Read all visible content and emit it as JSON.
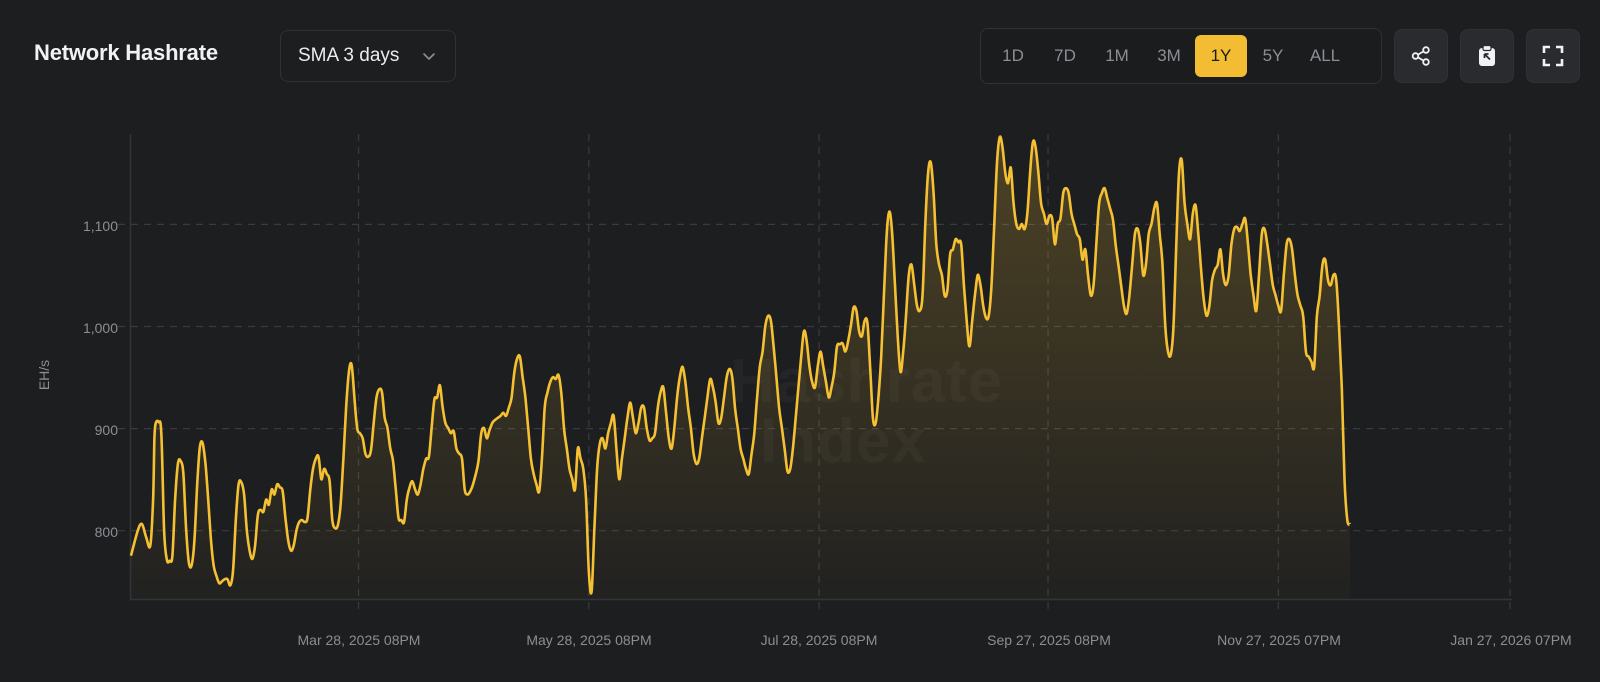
{
  "header": {
    "title": "Network Hashrate",
    "average_select": {
      "value": "SMA 3 days",
      "icon": "chevron-down-icon"
    }
  },
  "range_buttons": [
    {
      "label": "1D",
      "active": false
    },
    {
      "label": "7D",
      "active": false
    },
    {
      "label": "1M",
      "active": false
    },
    {
      "label": "3M",
      "active": false
    },
    {
      "label": "1Y",
      "active": true
    },
    {
      "label": "5Y",
      "active": false
    },
    {
      "label": "ALL",
      "active": false
    }
  ],
  "toolbar": {
    "share_icon": "share-icon",
    "clipboard_icon": "clipboard-icon",
    "fullscreen_icon": "fullscreen-icon"
  },
  "watermark": {
    "line1": "Hashrate",
    "line2": "Index"
  },
  "colors": {
    "background": "#1d1e20",
    "accent": "#f2bd33",
    "line": "#f5c133",
    "grid": "#3a3b40",
    "tick_text": "#8d8e94"
  },
  "chart_data": {
    "type": "area",
    "title": "Network Hashrate",
    "xlabel": "",
    "ylabel": "EH/s",
    "ylim": [
      734,
      1190
    ],
    "yticks": [
      "800",
      "900",
      "1,000",
      "1,100"
    ],
    "ytick_values": [
      800,
      900,
      1000,
      1100
    ],
    "xticks": [
      "Mar 28, 2025 08PM",
      "May 28, 2025 08PM",
      "Jul 28, 2025 08PM",
      "Sep 27, 2025 08PM",
      "Nov 27, 2025 07PM",
      "Jan 27, 2026 07PM"
    ],
    "xtick_positions": [
      0.165,
      0.332,
      0.499,
      0.665,
      0.832,
      1.0
    ],
    "grid": true,
    "legend": null,
    "series": [
      {
        "name": "Network Hashrate (SMA 3 days)",
        "x_frac": [
          0,
          0.005,
          0.008,
          0.011,
          0.014,
          0.016,
          0.017,
          0.018,
          0.02,
          0.022,
          0.024,
          0.026,
          0.028,
          0.03,
          0.032,
          0.034,
          0.036,
          0.038,
          0.04,
          0.042,
          0.044,
          0.046,
          0.048,
          0.05,
          0.052,
          0.054,
          0.056,
          0.058,
          0.06,
          0.062,
          0.064,
          0.066,
          0.068,
          0.07,
          0.072,
          0.074,
          0.076,
          0.078,
          0.08,
          0.082,
          0.084,
          0.086,
          0.088,
          0.09,
          0.092,
          0.094,
          0.096,
          0.098,
          0.1,
          0.102,
          0.104,
          0.106,
          0.108,
          0.11,
          0.112,
          0.114,
          0.116,
          0.118,
          0.12,
          0.122,
          0.124,
          0.126,
          0.128,
          0.13,
          0.132,
          0.134,
          0.136,
          0.138,
          0.14,
          0.142,
          0.144,
          0.146,
          0.148,
          0.15,
          0.152,
          0.154,
          0.156,
          0.158,
          0.16,
          0.162,
          0.164,
          0.166,
          0.168,
          0.17,
          0.172,
          0.174,
          0.176,
          0.178,
          0.18,
          0.182,
          0.184,
          0.186,
          0.188,
          0.19,
          0.192,
          0.194,
          0.196,
          0.198,
          0.2,
          0.202,
          0.204,
          0.206,
          0.208,
          0.21,
          0.212,
          0.214,
          0.216,
          0.218,
          0.22,
          0.222,
          0.224,
          0.226,
          0.228,
          0.23,
          0.232,
          0.234,
          0.236,
          0.238,
          0.24,
          0.242,
          0.244,
          0.246,
          0.248,
          0.25,
          0.252,
          0.254,
          0.256,
          0.258,
          0.26,
          0.262,
          0.264,
          0.266,
          0.268,
          0.27,
          0.272,
          0.274,
          0.276,
          0.278,
          0.28,
          0.282,
          0.284,
          0.286,
          0.288,
          0.29,
          0.292,
          0.294,
          0.296,
          0.298,
          0.3,
          0.302,
          0.304,
          0.306,
          0.308,
          0.31,
          0.312,
          0.314,
          0.316,
          0.318,
          0.32,
          0.322,
          0.324,
          0.326,
          0.328,
          0.33,
          0.332,
          0.334,
          0.336,
          0.338,
          0.34,
          0.342,
          0.344,
          0.346,
          0.348,
          0.35,
          0.352,
          0.354,
          0.356,
          0.358,
          0.36,
          0.362,
          0.364,
          0.366,
          0.368,
          0.37,
          0.372,
          0.374,
          0.376,
          0.378,
          0.38,
          0.382,
          0.384,
          0.386,
          0.388,
          0.39,
          0.392,
          0.394,
          0.396,
          0.398,
          0.4,
          0.402,
          0.404,
          0.406,
          0.408,
          0.41,
          0.412,
          0.414,
          0.416,
          0.418,
          0.42,
          0.422,
          0.424,
          0.426,
          0.428,
          0.43,
          0.432,
          0.434,
          0.436,
          0.438,
          0.44,
          0.442,
          0.444,
          0.446,
          0.448,
          0.45,
          0.452,
          0.454,
          0.456,
          0.458,
          0.46,
          0.462,
          0.464,
          0.466,
          0.468,
          0.47,
          0.472,
          0.474,
          0.476,
          0.478,
          0.48,
          0.482,
          0.484,
          0.486,
          0.488,
          0.49,
          0.492,
          0.494,
          0.496,
          0.498,
          0.5,
          0.502,
          0.504,
          0.506,
          0.508,
          0.51,
          0.512,
          0.514,
          0.516,
          0.518,
          0.52,
          0.522,
          0.524,
          0.526,
          0.528,
          0.53,
          0.532,
          0.534,
          0.536,
          0.538,
          0.54,
          0.542,
          0.544,
          0.546,
          0.548,
          0.55,
          0.552,
          0.554,
          0.556,
          0.558,
          0.56,
          0.562,
          0.564,
          0.566,
          0.568,
          0.57,
          0.572,
          0.574,
          0.576,
          0.578,
          0.58,
          0.582,
          0.584,
          0.586,
          0.588,
          0.59,
          0.592,
          0.594,
          0.596,
          0.598,
          0.6,
          0.602,
          0.604,
          0.606,
          0.608,
          0.61,
          0.612,
          0.614,
          0.616,
          0.618,
          0.62,
          0.622,
          0.624,
          0.626,
          0.628,
          0.63,
          0.632,
          0.634,
          0.636,
          0.638,
          0.64,
          0.642,
          0.644,
          0.646,
          0.648,
          0.65,
          0.652,
          0.654,
          0.656,
          0.658,
          0.66,
          0.662,
          0.664,
          0.666,
          0.668,
          0.67,
          0.672,
          0.674,
          0.676,
          0.678,
          0.68,
          0.682,
          0.684,
          0.686,
          0.688,
          0.69,
          0.692,
          0.694,
          0.696,
          0.698,
          0.7,
          0.702,
          0.704,
          0.706,
          0.708,
          0.71,
          0.712,
          0.714,
          0.716,
          0.718,
          0.72,
          0.722,
          0.724,
          0.726,
          0.728,
          0.73,
          0.732,
          0.734,
          0.736,
          0.738,
          0.74,
          0.742,
          0.744,
          0.746,
          0.748,
          0.75,
          0.752,
          0.754,
          0.756,
          0.758,
          0.76,
          0.762,
          0.764,
          0.766,
          0.768,
          0.77,
          0.772,
          0.774,
          0.776,
          0.778,
          0.78,
          0.782,
          0.784,
          0.786,
          0.788,
          0.79,
          0.792,
          0.794,
          0.796,
          0.798,
          0.8,
          0.802,
          0.804,
          0.806,
          0.808,
          0.81,
          0.812,
          0.814,
          0.816,
          0.818,
          0.82,
          0.822,
          0.824,
          0.826,
          0.828,
          0.83,
          0.832,
          0.834,
          0.836,
          0.838,
          0.84,
          0.842,
          0.844,
          0.846,
          0.848,
          0.85,
          0.852,
          0.854,
          0.856,
          0.858,
          0.86,
          0.862,
          0.864,
          0.866,
          0.868,
          0.87,
          0.872,
          0.874,
          0.876,
          0.878,
          0.88,
          0.882,
          0.884,
          0.886,
          0.888,
          0.89,
          0.892,
          0.894,
          0.896,
          0.898,
          0.9,
          0.902,
          0.904,
          0.906,
          0.908,
          0.91,
          0.912,
          0.914,
          0.916,
          0.918,
          0.92,
          0.922,
          0.924,
          0.926,
          0.928,
          0.93,
          0.932,
          0.934,
          0.936,
          0.938,
          0.94,
          0.942,
          0.944,
          0.946,
          0.948,
          0.95,
          0.952,
          0.954,
          0.956,
          0.958,
          0.96,
          0.962,
          0.964,
          0.966,
          0.968,
          0.97,
          0.972,
          0.974,
          0.976,
          0.978,
          0.98,
          0.982,
          0.984,
          0.986,
          0.988,
          0.99,
          0.992,
          0.994,
          0.996,
          0.998,
          1.0
        ],
        "values": [
          775,
          800,
          806,
          793,
          785,
          830,
          890,
          905,
          906,
          895,
          800,
          771,
          770,
          775,
          830,
          865,
          868,
          855,
          800,
          768,
          766,
          790,
          845,
          882,
          885,
          865,
          830,
          790,
          765,
          755,
          748,
          750,
          752,
          752,
          746,
          760,
          810,
          845,
          847,
          835,
          800,
          780,
          772,
          785,
          815,
          820,
          818,
          830,
          825,
          840,
          835,
          845,
          842,
          838,
          812,
          790,
          780,
          785,
          800,
          808,
          810,
          808,
          812,
          840,
          860,
          870,
          872,
          850,
          860,
          855,
          848,
          810,
          802,
          805,
          825,
          870,
          920,
          955,
          962,
          930,
          900,
          895,
          890,
          875,
          872,
          878,
          905,
          930,
          938,
          935,
          910,
          900,
          880,
          868,
          840,
          812,
          810,
          808,
          830,
          842,
          848,
          840,
          835,
          845,
          860,
          870,
          872,
          900,
          928,
          930,
          942,
          920,
          905,
          900,
          895,
          897,
          880,
          875,
          870,
          840,
          835,
          838,
          845,
          855,
          868,
          895,
          900,
          890,
          898,
          905,
          908,
          910,
          912,
          915,
          912,
          920,
          930,
          955,
          968,
          970,
          950,
          930,
          900,
          870,
          855,
          845,
          838,
          870,
          920,
          935,
          945,
          950,
          948,
          952,
          935,
          900,
          880,
          860,
          850,
          840,
          880,
          870,
          860,
          830,
          760,
          740,
          800,
          860,
          885,
          890,
          880,
          895,
          905,
          912,
          880,
          850,
          870,
          890,
          910,
          925,
          910,
          895,
          905,
          920,
          920,
          900,
          888,
          890,
          895,
          920,
          935,
          940,
          915,
          890,
          880,
          900,
          930,
          950,
          960,
          945,
          920,
          900,
          875,
          865,
          870,
          890,
          910,
          930,
          948,
          940,
          925,
          905,
          910,
          930,
          950,
          958,
          950,
          920,
          900,
          880,
          870,
          860,
          855,
          875,
          895,
          930,
          960,
          975,
          1000,
          1010,
          1005,
          980,
          950,
          920,
          900,
          880,
          858,
          860,
          880,
          910,
          940,
          970,
          995,
          985,
          960,
          945,
          940,
          960,
          975,
          960,
          945,
          930,
          940,
          955,
          980,
          982,
          983,
          975,
          985,
          1000,
          1018,
          1015,
          995,
          990,
          1005,
          1003,
          960,
          910,
          905,
          930,
          970,
          1030,
          1090,
          1112,
          1090,
          1040,
          990,
          955,
          975,
          1010,
          1050,
          1060,
          1040,
          1020,
          1015,
          1030,
          1100,
          1150,
          1160,
          1130,
          1080,
          1060,
          1050,
          1030,
          1035,
          1070,
          1075,
          1085,
          1082,
          1080,
          1040,
          1005,
          980,
          1005,
          1030,
          1050,
          1040,
          1020,
          1008,
          1010,
          1040,
          1100,
          1160,
          1185,
          1175,
          1150,
          1140,
          1155,
          1120,
          1100,
          1095,
          1100,
          1095,
          1110,
          1150,
          1180,
          1175,
          1150,
          1120,
          1110,
          1100,
          1108,
          1105,
          1080,
          1100,
          1105,
          1130,
          1135,
          1130,
          1110,
          1100,
          1090,
          1085,
          1065,
          1075,
          1050,
          1030,
          1040,
          1080,
          1120,
          1130,
          1135,
          1125,
          1115,
          1105,
          1080,
          1060,
          1040,
          1020,
          1012,
          1030,
          1060,
          1090,
          1095,
          1080,
          1050,
          1060,
          1090,
          1100,
          1115,
          1120,
          1090,
          1060,
          1000,
          975,
          972,
          1000,
          1080,
          1150,
          1162,
          1120,
          1100,
          1085,
          1110,
          1118,
          1090,
          1055,
          1025,
          1010,
          1020,
          1045,
          1055,
          1060,
          1075,
          1050,
          1040,
          1050,
          1080,
          1095,
          1097,
          1093,
          1100,
          1105,
          1080,
          1050,
          1030,
          1015,
          1050,
          1090,
          1095,
          1080,
          1060,
          1040,
          1030,
          1020,
          1015,
          1050,
          1080,
          1085,
          1075,
          1050,
          1030,
          1020,
          1010,
          975,
          970,
          965,
          960,
          1010,
          1030,
          1060,
          1065,
          1045,
          1040,
          1050,
          1045,
          1000,
          940,
          850,
          810,
          806
        ]
      }
    ]
  }
}
